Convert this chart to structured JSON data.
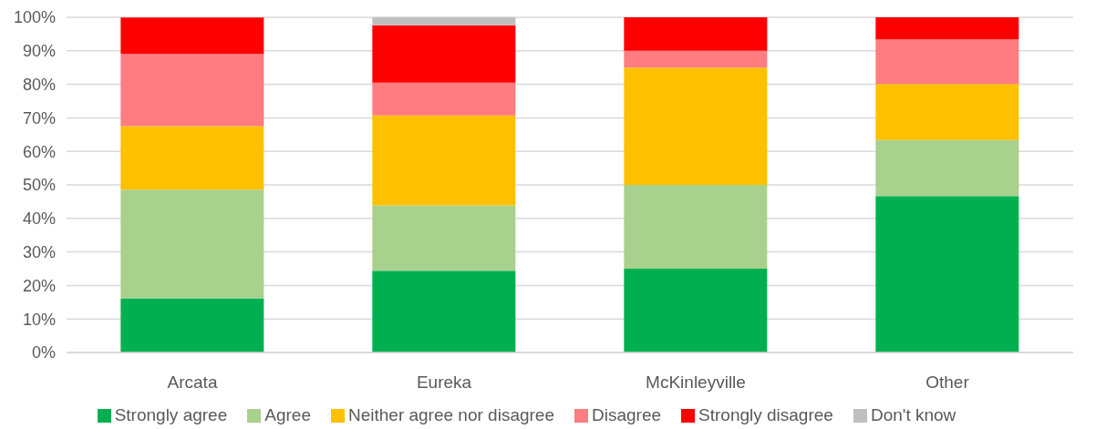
{
  "chart_data": {
    "type": "bar",
    "stacked": true,
    "categories": [
      "Arcata",
      "Eureka",
      "McKinleyville",
      "Other"
    ],
    "series": [
      {
        "name": "Strongly agree",
        "color": "#00b050",
        "values": [
          16.2,
          24.4,
          25,
          46.7
        ]
      },
      {
        "name": "Agree",
        "color": "#a9d18e",
        "values": [
          32.4,
          19.5,
          25,
          16.7
        ]
      },
      {
        "name": "Neither agree nor disagree",
        "color": "#ffc000",
        "values": [
          18.9,
          26.8,
          35,
          16.7
        ]
      },
      {
        "name": "Disagree",
        "color": "#ff7c80",
        "values": [
          21.6,
          9.8,
          5,
          13.3
        ]
      },
      {
        "name": "Strongly disagree",
        "color": "#ff0000",
        "values": [
          10.8,
          17.1,
          10,
          6.7
        ]
      },
      {
        "name": "Don't know",
        "color": "#bfbfbf",
        "values": [
          0,
          2.4,
          0,
          0
        ]
      }
    ],
    "ylim": [
      0,
      100
    ],
    "yticks": [
      {
        "value": 0,
        "label": "0%"
      },
      {
        "value": 10,
        "label": "10%"
      },
      {
        "value": 20,
        "label": "20%"
      },
      {
        "value": 30,
        "label": "30%"
      },
      {
        "value": 40,
        "label": "40%"
      },
      {
        "value": 50,
        "label": "50%"
      },
      {
        "value": 60,
        "label": "60%"
      },
      {
        "value": 70,
        "label": "70%"
      },
      {
        "value": 80,
        "label": "80%"
      },
      {
        "value": 90,
        "label": "90%"
      },
      {
        "value": 100,
        "label": "100%"
      }
    ],
    "grid": "y",
    "legend": "bottom"
  }
}
